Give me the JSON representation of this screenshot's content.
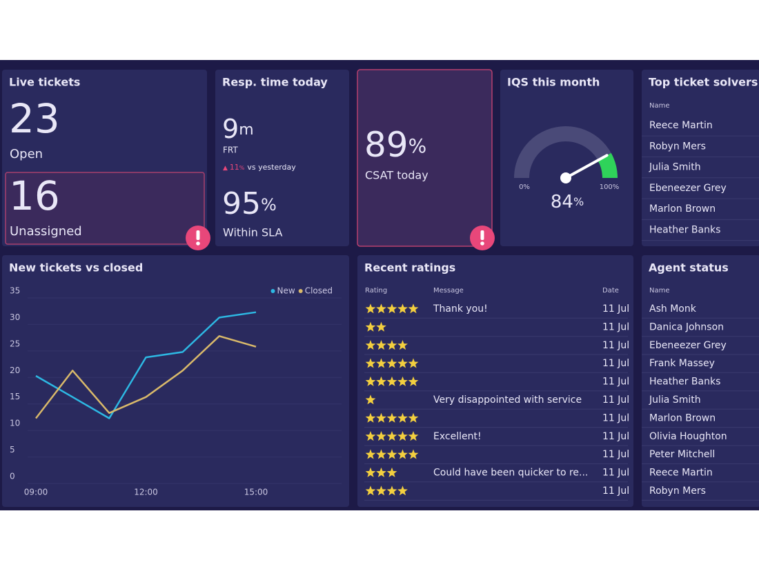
{
  "live_tickets": {
    "title": "Live tickets",
    "open": {
      "value": 23,
      "label": "Open"
    },
    "unassigned": {
      "value": 16,
      "label": "Unassigned"
    }
  },
  "response_time": {
    "title": "Resp. time today",
    "frt": {
      "value": 9,
      "unit": "m",
      "label": "FRT"
    },
    "change": {
      "value": 11,
      "unit": "%",
      "text": "vs yesterday"
    },
    "sla": {
      "value": 95,
      "unit": "%",
      "label": "Within SLA"
    }
  },
  "csat": {
    "value": 89,
    "unit": "%",
    "label": "CSAT today"
  },
  "iqs": {
    "title": "IQS this month",
    "value": 84,
    "unit": "%",
    "min": {
      "value": 0,
      "label": "0%"
    },
    "max": {
      "value": 100,
      "label": "100%"
    }
  },
  "top_solvers": {
    "title": "Top ticket solvers",
    "column": "Name",
    "names": [
      "Reece Martin",
      "Robyn Mers",
      "Julia Smith",
      "Ebeneezer Grey",
      "Marlon Brown",
      "Heather Banks"
    ]
  },
  "chart_data": {
    "type": "line",
    "title": "New tickets vs closed",
    "categories": [
      "09:00",
      null,
      null,
      "12:00",
      null,
      null,
      "15:00"
    ],
    "series": [
      {
        "name": "New",
        "color": "#2db8e3",
        "values": [
          19,
          15,
          11,
          22.5,
          23.5,
          30,
          31
        ]
      },
      {
        "name": "Closed",
        "color": "#d9b96a",
        "values": [
          11,
          20,
          12,
          15,
          20,
          26.5,
          24.5
        ]
      }
    ],
    "ylim": [
      0,
      35
    ],
    "yticks": [
      0,
      5,
      10,
      15,
      20,
      25,
      30,
      35
    ],
    "grid": true,
    "legend": "top-right"
  },
  "recent_ratings": {
    "title": "Recent ratings",
    "columns": [
      "Rating",
      "Message",
      "Date"
    ],
    "rows": [
      {
        "rating": 5,
        "message": "Thank you!",
        "date": "11 Jul"
      },
      {
        "rating": 2,
        "message": null,
        "date": "11 Jul"
      },
      {
        "rating": 4,
        "message": null,
        "date": "11 Jul"
      },
      {
        "rating": 5,
        "message": null,
        "date": "11 Jul"
      },
      {
        "rating": 5,
        "message": null,
        "date": "11 Jul"
      },
      {
        "rating": 1,
        "message": "Very disappointed with service",
        "date": "11 Jul"
      },
      {
        "rating": 5,
        "message": null,
        "date": "11 Jul"
      },
      {
        "rating": 5,
        "message": "Excellent!",
        "date": "11 Jul"
      },
      {
        "rating": 5,
        "message": null,
        "date": "11 Jul"
      },
      {
        "rating": 3,
        "message": "Could have been quicker to re...",
        "date": "11 Jul"
      },
      {
        "rating": 4,
        "message": null,
        "date": "11 Jul"
      }
    ]
  },
  "agent_status": {
    "title": "Agent status",
    "column": "Name",
    "names": [
      "Ash Monk",
      "Danica Johnson",
      "Ebeneezer Grey",
      "Frank Massey",
      "Heather Banks",
      "Julia Smith",
      "Marlon Brown",
      "Olivia Houghton",
      "Peter Mitchell",
      "Reece Martin",
      "Robyn Mers"
    ]
  }
}
